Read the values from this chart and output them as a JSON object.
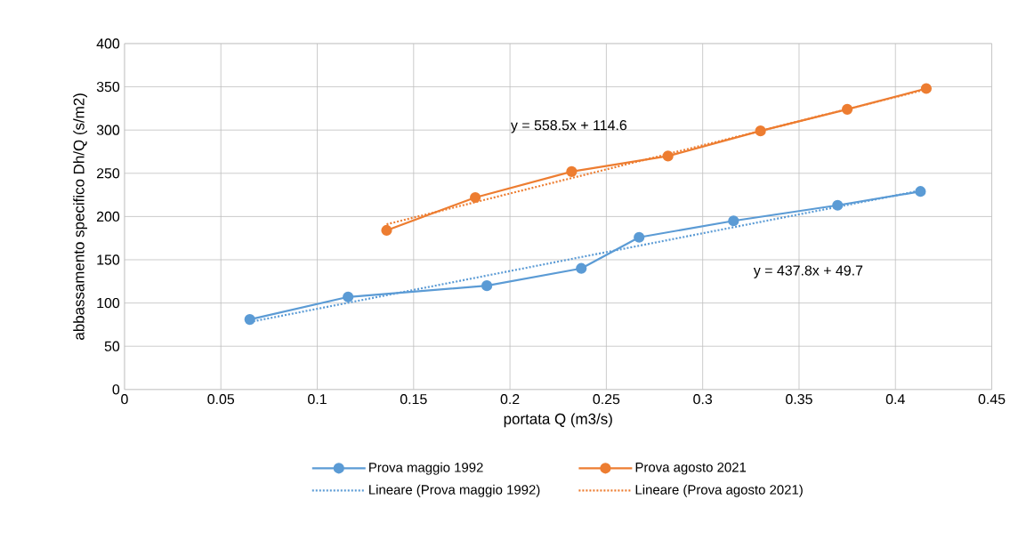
{
  "chart_data": {
    "type": "line",
    "xlabel": "portata Q (m3/s)",
    "ylabel": "abbassamento specifico Dh/Q (s/m2)",
    "xlim": [
      0,
      0.45
    ],
    "xticks": [
      0,
      0.05,
      0.1,
      0.15,
      0.2,
      0.25,
      0.3,
      0.35,
      0.4,
      0.45
    ],
    "ylim": [
      0,
      400
    ],
    "yticks": [
      0,
      50,
      100,
      150,
      200,
      250,
      300,
      350,
      400
    ],
    "grid": true,
    "legend": "bottom",
    "series": [
      {
        "name": "Prova maggio 1992",
        "color": "#5b9bd5",
        "marker": "circle",
        "line_style": "solid",
        "x": [
          0.065,
          0.116,
          0.188,
          0.237,
          0.267,
          0.316,
          0.37,
          0.413
        ],
        "values": [
          81,
          107,
          120,
          140,
          176,
          195,
          213,
          229
        ]
      },
      {
        "name": "Prova agosto 2021",
        "color": "#ed7d31",
        "marker": "circle",
        "line_style": "solid",
        "x": [
          0.136,
          0.182,
          0.232,
          0.282,
          0.33,
          0.375,
          0.416
        ],
        "values": [
          184,
          222,
          252,
          270,
          299,
          324,
          348
        ]
      },
      {
        "name": "Lineare (Prova maggio 1992)",
        "color": "#5b9bd5",
        "marker": "none",
        "line_style": "dotted",
        "x": [
          0.065,
          0.413
        ],
        "values": [
          78,
          230
        ]
      },
      {
        "name": "Lineare (Prova agosto 2021)",
        "color": "#ed7d31",
        "marker": "none",
        "line_style": "dotted",
        "x": [
          0.136,
          0.416
        ],
        "values": [
          191,
          347
        ]
      }
    ],
    "annotations": [
      "y = 558.5x + 114.6",
      "y = 437.8x + 49.7"
    ]
  }
}
